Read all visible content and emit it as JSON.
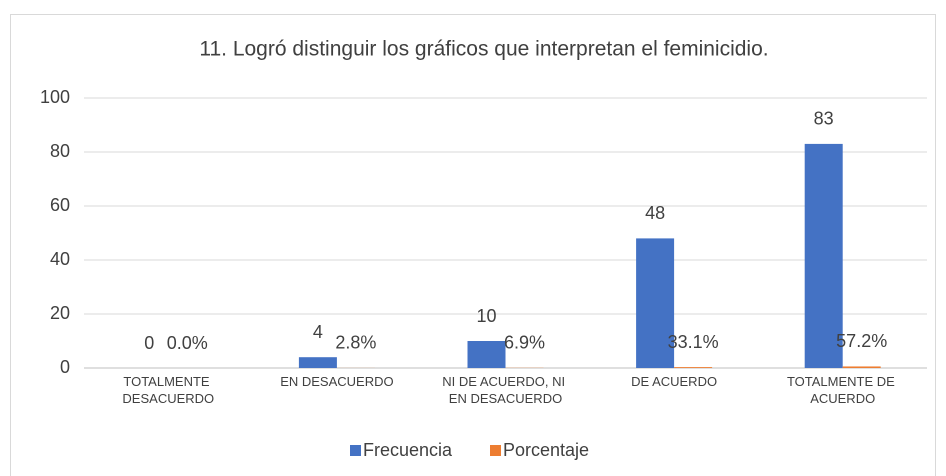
{
  "chart_data": {
    "type": "bar",
    "title": "11. Logró distinguir los gráficos que interpretan el feminicidio.",
    "categories": [
      "TOTALMENTE DESACUERDO",
      "EN DESACUERDO",
      "NI DE ACUERDO, NI EN DESACUERDO",
      "DE ACUERDO",
      "TOTALMENTE DE ACUERDO"
    ],
    "series": [
      {
        "name": "Frecuencia",
        "color": "#4472c4",
        "values": [
          0,
          4,
          10,
          48,
          83
        ]
      },
      {
        "name": "Porcentaje",
        "color": "#ed7d31",
        "values": [
          0,
          0.028,
          0.069,
          0.331,
          0.572
        ],
        "value_labels": [
          "0.0%",
          "2.8%",
          "6.9%",
          "33.1%",
          "57.2%"
        ]
      }
    ],
    "ylim": [
      0,
      100
    ],
    "yticks": [
      0,
      20,
      40,
      60,
      80,
      100
    ],
    "grid": true,
    "legend": "bottom"
  }
}
